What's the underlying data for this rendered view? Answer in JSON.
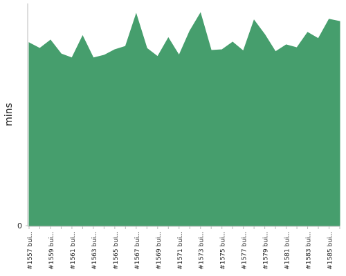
{
  "chart_data": {
    "type": "area",
    "y_label": "mins",
    "color": "#469e6d",
    "categories": [
      "#1557 bui...",
      null,
      "#1559 bui...",
      null,
      "#1561 bui...",
      null,
      "#1563 bui...",
      null,
      "#1565 bui...",
      null,
      "#1567 bui...",
      null,
      "#1569 bui...",
      null,
      "#1571 bui...",
      null,
      "#1573 bui...",
      null,
      "#1575 bui...",
      null,
      "#1577 bui...",
      null,
      "#1579 bui...",
      null,
      "#1581 bui...",
      null,
      "#1583 bui...",
      null,
      "#1585 bui...",
      null
    ],
    "values": [
      82.3,
      79.8,
      83.5,
      77.3,
      75.5,
      85.4,
      75.5,
      76.7,
      79.2,
      80.7,
      95.3,
      79.8,
      76.1,
      84.5,
      76.7,
      87.6,
      95.7,
      78.9,
      79.2,
      82.6,
      78.6,
      92.5,
      86.0,
      78.3,
      81.4,
      80.1,
      87.0,
      84.2,
      92.9,
      91.9
    ],
    "ylim": [
      0,
      100
    ],
    "yticks": [
      0
    ]
  }
}
